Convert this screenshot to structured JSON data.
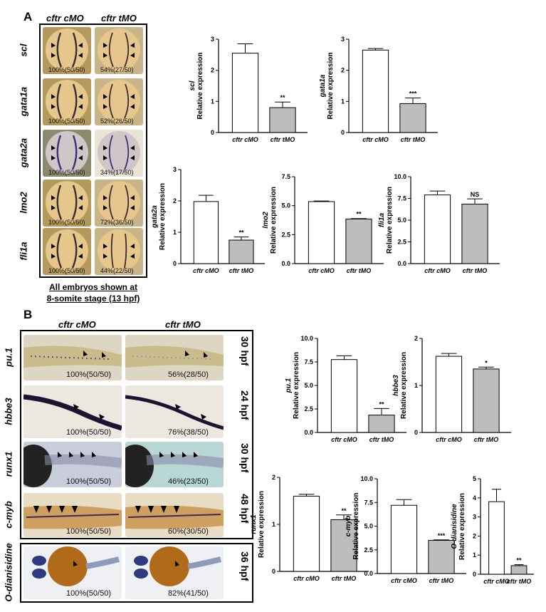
{
  "panelA": {
    "letter": "A",
    "col_c": "cftr cMO",
    "col_t": "cftr tMO",
    "rows": [
      {
        "gene": "scl",
        "c_pct": "100%(50/50)",
        "t_pct": "54%(27/50)"
      },
      {
        "gene": "gata1a",
        "c_pct": "100%(50/50)",
        "t_pct": "52%(26/50)"
      },
      {
        "gene": "gata2a",
        "c_pct": "100%(50/50)",
        "t_pct": "34%(17/50)"
      },
      {
        "gene": "lmo2",
        "c_pct": "100%(50/50)",
        "t_pct": "72%(36/50)"
      },
      {
        "gene": "fli1a",
        "c_pct": "100%(50/50)",
        "t_pct": "44%(22/50)"
      }
    ],
    "caption_line1": "All embryos shown at",
    "caption_line2": "8-somite stage (13 hpf)"
  },
  "panelB": {
    "letter": "B",
    "col_c": "cftr cMO",
    "col_t": "cftr tMO",
    "rows": [
      {
        "gene": "pu.1",
        "c_pct": "100%(50/50)",
        "t_pct": "56%(28/50)",
        "stage": "30 hpf"
      },
      {
        "gene": "hbbe3",
        "c_pct": "100%(50/50)",
        "t_pct": "76%(38/50)",
        "stage": "24 hpf"
      },
      {
        "gene": "runx1",
        "c_pct": "100%(50/50)",
        "t_pct": "46%(23/50)",
        "stage": "30 hpf"
      },
      {
        "gene": "c-myb",
        "c_pct": "100%(50/50)",
        "t_pct": "60%(30/50)",
        "stage": "48 hpf"
      },
      {
        "gene": "O-dianisidine",
        "c_pct": "100%(50/50)",
        "t_pct": "82%(41/50)",
        "stage": "36 hpf"
      }
    ]
  },
  "chart_data": [
    {
      "type": "bar",
      "ylabel_gene": "scl",
      "ylabel": "Relative expression",
      "categories": [
        "cftr cMO",
        "cftr tMO"
      ],
      "values": [
        2.55,
        0.8
      ],
      "errors": [
        0.3,
        0.18
      ],
      "ylim": [
        0,
        3
      ],
      "yticks": [
        "0",
        "1",
        "2",
        "3"
      ],
      "sig": "**"
    },
    {
      "type": "bar",
      "ylabel_gene": "gata1a",
      "ylabel": "Relative expression",
      "categories": [
        "cftr cMO",
        "cftr tMO"
      ],
      "values": [
        2.65,
        0.93
      ],
      "errors": [
        0.05,
        0.18
      ],
      "ylim": [
        0,
        3
      ],
      "yticks": [
        "0",
        "1",
        "2",
        "3"
      ],
      "sig": "***"
    },
    {
      "type": "bar",
      "ylabel_gene": "gata2a",
      "ylabel": "Relative expression",
      "categories": [
        "cftr cMO",
        "cftr tMO"
      ],
      "values": [
        1.98,
        0.75
      ],
      "errors": [
        0.2,
        0.1
      ],
      "ylim": [
        0,
        3
      ],
      "yticks": [
        "0",
        "1",
        "2",
        "3"
      ],
      "sig": "**"
    },
    {
      "type": "bar",
      "ylabel_gene": "lmo2",
      "ylabel": "Relative expression",
      "categories": [
        "cftr cMO",
        "cftr tMO"
      ],
      "values": [
        5.35,
        3.85
      ],
      "errors": [
        0.05,
        0.04
      ],
      "ylim": [
        0,
        7.5
      ],
      "yticks": [
        "0.0",
        "2.5",
        "5.0",
        "7.5"
      ],
      "sig": "**"
    },
    {
      "type": "bar",
      "ylabel_gene": "fli1a",
      "ylabel": "Relative expression",
      "categories": [
        "cftr cMO",
        "cftr tMO"
      ],
      "values": [
        7.9,
        6.85
      ],
      "errors": [
        0.45,
        0.6
      ],
      "ylim": [
        0,
        10
      ],
      "yticks": [
        "0.0",
        "2.5",
        "5.0",
        "7.5",
        "10.0"
      ],
      "sig": "NS"
    },
    {
      "type": "bar",
      "ylabel_gene": "pu.1",
      "ylabel": "Relative expression",
      "categories": [
        "cftr cMO",
        "cftr tMO"
      ],
      "values": [
        7.75,
        1.85
      ],
      "errors": [
        0.4,
        0.7
      ],
      "ylim": [
        0,
        10
      ],
      "yticks": [
        "0.0",
        "2.5",
        "5.0",
        "7.5",
        "10.0"
      ],
      "sig": "**"
    },
    {
      "type": "bar",
      "ylabel_gene": "hbbe3",
      "ylabel": "Relative expression",
      "categories": [
        "cftr cMO",
        "cftr tMO"
      ],
      "values": [
        1.62,
        1.35
      ],
      "errors": [
        0.06,
        0.04
      ],
      "ylim": [
        0,
        2
      ],
      "yticks": [
        "0",
        "1",
        "2"
      ],
      "sig": "*"
    },
    {
      "type": "bar",
      "ylabel_gene": "runx1",
      "ylabel": "Relative expression",
      "categories": [
        "cftr cMO",
        "cftr tMO"
      ],
      "values": [
        1.6,
        1.1
      ],
      "errors": [
        0.04,
        0.1
      ],
      "ylim": [
        0,
        2
      ],
      "yticks": [
        "0",
        "1",
        "2"
      ],
      "sig": "**"
    },
    {
      "type": "bar",
      "ylabel_gene": "c-myb",
      "ylabel": "Relative expression",
      "categories": [
        "cftr cMO",
        "cftr tMO"
      ],
      "values": [
        7.2,
        3.5
      ],
      "errors": [
        0.6,
        0.05
      ],
      "ylim": [
        0,
        10
      ],
      "yticks": [
        "0.0",
        "2.5",
        "5.0",
        "7.5",
        "10.0"
      ],
      "sig": "***"
    },
    {
      "type": "bar",
      "ylabel_gene": "O-dianisidine",
      "ylabel": "Relative expression",
      "categories": [
        "cftr cMO",
        "cftr tMO"
      ],
      "values": [
        3.8,
        0.45
      ],
      "errors": [
        0.65,
        0.05
      ],
      "ylim": [
        0,
        5
      ],
      "yticks": [
        "0",
        "1",
        "2",
        "3",
        "4",
        "5"
      ],
      "sig": "**"
    }
  ],
  "colors": {
    "control_bar": "#ffffff",
    "treated_bar": "#bdbdbd",
    "axis": "#000000"
  }
}
